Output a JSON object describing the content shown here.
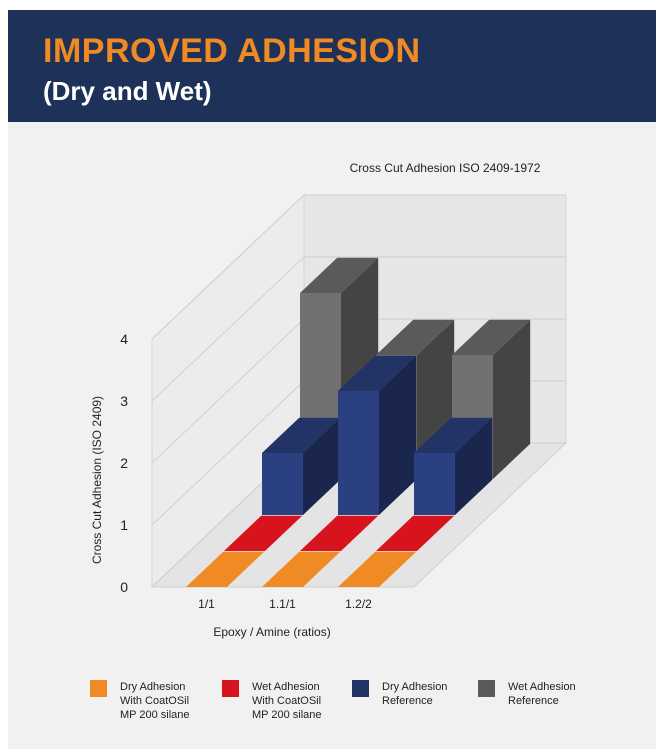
{
  "header": {
    "title": "IMPROVED ADHESION",
    "subtitle": "(Dry and Wet)"
  },
  "colors": {
    "header_bg": "#1e3259",
    "title": "#ef8a25",
    "panel_bg": "#f1f1f1"
  },
  "chart_data": {
    "type": "bar",
    "subtype": "3d-bar",
    "title": "Cross Cut Adhesion ISO 2409-1972",
    "xlabel": "Epoxy / Amine (ratios)",
    "ylabel": "Cross Cut Adhesion (ISO 2409)",
    "categories": [
      "1/1",
      "1.1/1",
      "1.2/2"
    ],
    "yticks": [
      "0",
      "1",
      "2",
      "3",
      "4"
    ],
    "ylim": [
      0,
      4
    ],
    "grid": true,
    "legend_position": "bottom",
    "series": [
      {
        "name": "Dry Adhesion\nWith CoatOSil\nMP 200 silane",
        "values": [
          0,
          0,
          0
        ],
        "color": "#ef8a25"
      },
      {
        "name": "Wet Adhesion\nWith CoatOSil\nMP 200 silane",
        "values": [
          0,
          0,
          0
        ],
        "color": "#d7141e"
      },
      {
        "name": "Dry Adhesion\nReference",
        "values": [
          1,
          2,
          1
        ],
        "color": "#223366"
      },
      {
        "name": "Wet Adhesion\nReference",
        "values": [
          3,
          2,
          2
        ],
        "color": "#5a5a5c"
      }
    ]
  }
}
